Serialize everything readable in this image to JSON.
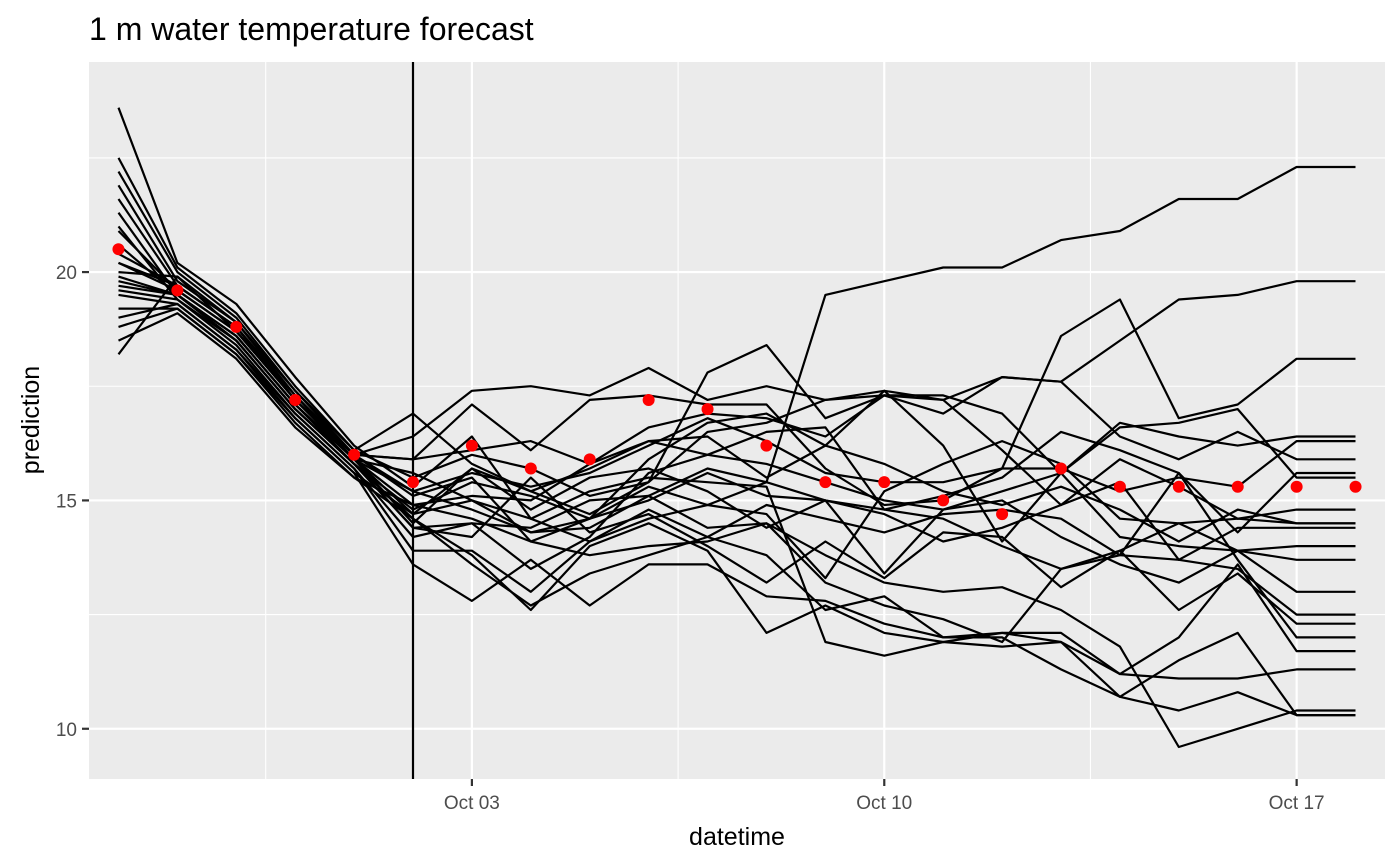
{
  "colors": {
    "panel_background": "#EBEBEB",
    "grid": "#FFFFFF",
    "ensemble_line": "#000000",
    "mean_point": "#FF0000",
    "reference_line": "#000000",
    "tick_label": "#4D4D4D"
  },
  "chart_data": {
    "type": "line",
    "title": "1 m water temperature forecast",
    "xlabel": "datetime",
    "ylabel": "prediction",
    "x_axis": {
      "kind": "date",
      "range": [
        "2023-09-26T12:00",
        "2023-10-18T12:00"
      ],
      "ticks": [
        {
          "date": "2023-10-03",
          "label": "Oct 03"
        },
        {
          "date": "2023-10-10",
          "label": "Oct 10"
        },
        {
          "date": "2023-10-17",
          "label": "Oct 17"
        }
      ],
      "minor_ticks": [
        "2023-09-29T12:00",
        "2023-10-06T12:00",
        "2023-10-13T12:00"
      ]
    },
    "y_axis": {
      "range": [
        8.9,
        24.6
      ],
      "ticks": [
        10,
        15,
        20
      ],
      "minor_ticks": [
        12.5,
        17.5,
        22.5
      ]
    },
    "grid": true,
    "reference_vline": {
      "x": "2023-10-02"
    },
    "x": [
      "2023-09-27",
      "2023-09-28",
      "2023-09-29",
      "2023-09-30",
      "2023-10-01",
      "2023-10-02",
      "2023-10-03",
      "2023-10-04",
      "2023-10-05",
      "2023-10-06",
      "2023-10-07",
      "2023-10-08",
      "2023-10-09",
      "2023-10-10",
      "2023-10-11",
      "2023-10-12",
      "2023-10-13",
      "2023-10-14",
      "2023-10-15",
      "2023-10-16",
      "2023-10-17",
      "2023-10-18"
    ],
    "mean_points": [
      20.5,
      19.6,
      18.8,
      17.2,
      16.0,
      15.4,
      16.2,
      15.7,
      15.9,
      17.2,
      17.0,
      16.2,
      15.4,
      15.4,
      15.0,
      14.7,
      15.7,
      15.3,
      15.3,
      15.3,
      15.3,
      15.3
    ],
    "ensemble": [
      [
        23.6,
        20.2,
        19.3,
        17.7,
        16.2,
        15.3,
        16.4,
        14.6,
        14.1,
        14.6,
        14.9,
        15.4,
        19.5,
        19.8,
        20.1,
        20.1,
        20.7,
        20.9,
        21.6,
        21.6,
        22.3,
        22.3
      ],
      [
        22.5,
        20.1,
        19.1,
        17.5,
        16.1,
        15.5,
        16.0,
        15.7,
        15.1,
        15.4,
        16.5,
        16.7,
        17.2,
        17.3,
        17.2,
        17.7,
        17.6,
        18.5,
        19.4,
        19.5,
        19.8,
        19.8
      ],
      [
        22.2,
        20.0,
        19.0,
        17.4,
        16.0,
        15.2,
        15.6,
        15.3,
        15.6,
        16.2,
        16.8,
        16.3,
        15.6,
        15.4,
        15.4,
        15.7,
        18.6,
        19.4,
        16.8,
        17.1,
        18.1,
        18.1
      ],
      [
        21.9,
        19.8,
        18.9,
        17.3,
        15.9,
        14.9,
        15.1,
        15.0,
        15.8,
        16.6,
        16.9,
        16.8,
        16.4,
        17.3,
        16.9,
        17.7,
        17.6,
        16.4,
        15.9,
        16.5,
        15.9,
        15.9
      ],
      [
        21.6,
        19.7,
        18.8,
        17.2,
        15.9,
        14.7,
        15.7,
        15.2,
        15.7,
        16.3,
        16.4,
        15.5,
        16.2,
        17.4,
        16.2,
        14.1,
        15.6,
        16.7,
        16.4,
        16.2,
        16.4,
        16.4
      ],
      [
        21.3,
        19.5,
        18.6,
        17.1,
        15.8,
        14.4,
        14.5,
        13.5,
        14.2,
        15.6,
        16.0,
        16.5,
        16.6,
        14.8,
        15.1,
        15.5,
        16.5,
        16.1,
        15.6,
        14.3,
        15.6,
        15.6
      ],
      [
        21.0,
        19.4,
        18.5,
        17.0,
        15.8,
        14.8,
        15.4,
        15.1,
        14.6,
        15.9,
        16.7,
        16.9,
        16.2,
        15.8,
        15.2,
        14.9,
        15.3,
        14.8,
        14.1,
        14.8,
        14.5,
        14.5
      ],
      [
        20.9,
        19.6,
        18.7,
        17.2,
        15.9,
        15.6,
        15.0,
        14.3,
        14.4,
        15.1,
        15.7,
        15.4,
        15.0,
        14.8,
        14.6,
        14.0,
        13.5,
        13.9,
        14.5,
        14.6,
        14.5,
        14.5
      ],
      [
        20.6,
        19.5,
        18.6,
        17.1,
        15.9,
        15.2,
        14.8,
        14.3,
        14.6,
        15.0,
        15.6,
        15.1,
        15.0,
        14.7,
        14.1,
        14.4,
        14.9,
        15.4,
        13.7,
        14.4,
        14.4,
        14.4
      ],
      [
        20.4,
        19.7,
        18.8,
        17.3,
        16.0,
        15.9,
        16.1,
        16.3,
        15.8,
        16.3,
        16.0,
        15.8,
        15.4,
        15.0,
        14.8,
        15.2,
        15.6,
        14.2,
        14.0,
        13.9,
        14.0,
        14.0
      ],
      [
        20.2,
        19.6,
        18.7,
        17.2,
        16.0,
        15.1,
        15.5,
        14.1,
        14.6,
        15.3,
        14.9,
        14.7,
        13.3,
        15.2,
        15.8,
        16.3,
        15.8,
        14.6,
        14.5,
        13.9,
        13.7,
        13.7
      ],
      [
        19.9,
        19.5,
        18.6,
        17.1,
        15.9,
        14.5,
        15.7,
        14.8,
        15.5,
        15.7,
        15.2,
        14.4,
        15.0,
        13.4,
        14.8,
        15.0,
        14.2,
        13.6,
        13.2,
        13.9,
        13.0,
        13.0
      ],
      [
        19.8,
        19.5,
        18.5,
        17.0,
        15.8,
        14.6,
        13.6,
        12.7,
        13.4,
        13.8,
        14.2,
        14.9,
        14.6,
        14.3,
        14.7,
        14.8,
        14.6,
        13.8,
        13.7,
        13.5,
        12.5,
        12.5
      ],
      [
        19.7,
        19.5,
        18.5,
        17.0,
        15.8,
        14.4,
        14.2,
        15.5,
        14.3,
        14.7,
        14.0,
        13.2,
        14.1,
        13.3,
        14.3,
        14.2,
        13.1,
        13.9,
        12.6,
        13.4,
        12.3,
        12.3
      ],
      [
        19.6,
        19.4,
        18.4,
        16.9,
        15.7,
        14.2,
        14.5,
        14.4,
        15.0,
        15.1,
        14.4,
        14.5,
        13.2,
        12.7,
        12.4,
        11.9,
        13.5,
        13.8,
        15.6,
        13.7,
        12.0,
        12.0
      ],
      [
        19.5,
        19.3,
        18.3,
        16.9,
        15.7,
        13.9,
        13.9,
        13.0,
        14.1,
        14.8,
        14.2,
        13.8,
        12.6,
        12.9,
        12.0,
        12.1,
        12.1,
        11.2,
        12.0,
        13.6,
        11.7,
        11.7
      ],
      [
        19.2,
        19.2,
        18.2,
        16.8,
        15.6,
        14.7,
        15.0,
        14.6,
        15.2,
        15.5,
        15.4,
        15.3,
        11.9,
        11.6,
        11.9,
        11.8,
        11.9,
        11.2,
        11.1,
        11.1,
        11.3,
        11.3
      ],
      [
        19.0,
        19.3,
        18.3,
        16.8,
        15.6,
        13.6,
        12.8,
        13.7,
        12.7,
        13.6,
        13.6,
        12.9,
        12.8,
        12.3,
        12.0,
        12.0,
        11.3,
        10.7,
        11.5,
        12.1,
        10.3,
        10.3
      ],
      [
        18.8,
        19.2,
        18.2,
        16.7,
        15.5,
        14.6,
        13.8,
        12.6,
        14.0,
        14.5,
        13.9,
        12.1,
        12.7,
        12.1,
        11.9,
        12.1,
        11.9,
        10.7,
        10.4,
        10.8,
        10.3,
        10.3
      ],
      [
        18.5,
        19.1,
        18.1,
        16.6,
        15.5,
        14.9,
        14.6,
        14.1,
        13.8,
        14.0,
        14.1,
        14.5,
        13.8,
        13.2,
        13.0,
        13.1,
        12.6,
        11.8,
        9.6,
        10.0,
        10.4,
        10.4
      ],
      [
        18.2,
        19.9,
        18.9,
        17.4,
        16.1,
        16.9,
        15.8,
        15.2,
        14.7,
        15.4,
        17.8,
        18.4,
        16.8,
        17.3,
        17.3,
        16.9,
        15.6,
        16.6,
        16.7,
        17.0,
        15.5,
        15.5
      ],
      [
        20.0,
        19.9,
        18.7,
        17.3,
        16.0,
        16.4,
        17.4,
        17.5,
        17.3,
        17.9,
        17.2,
        17.5,
        17.2,
        17.4,
        17.2,
        16.1,
        14.9,
        15.9,
        15.3,
        14.6,
        14.8,
        14.8
      ],
      [
        20.2,
        19.7,
        18.8,
        17.2,
        16.0,
        15.9,
        17.1,
        16.1,
        17.2,
        17.3,
        17.1,
        17.1,
        15.7,
        14.9,
        15.0,
        15.7,
        15.7,
        15.2,
        15.5,
        15.3,
        16.3,
        16.3
      ]
    ]
  }
}
